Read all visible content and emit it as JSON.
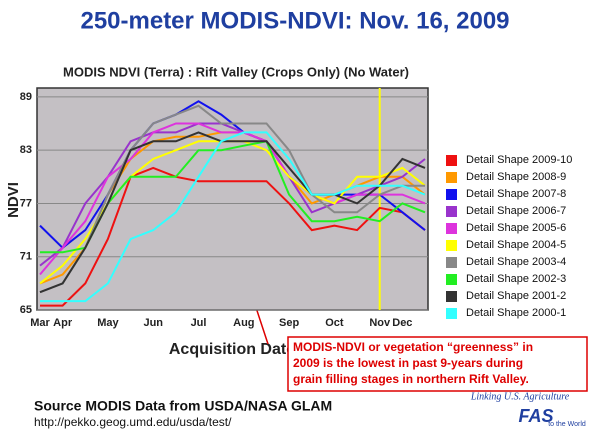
{
  "slide": {
    "title": "250-meter MODIS-NDVI: Nov. 16, 2009",
    "source": "Source MODIS Data from USDA/NASA GLAM",
    "url": "http://pekko.geog.umd.edu/usda/test/",
    "logo_line": "Linking U.S. Agriculture",
    "logo_mark": "FAS",
    "logo_tail": "to the World"
  },
  "chart_data": {
    "type": "line",
    "title": "MODIS NDVI (Terra) : Rift Valley (Crops Only) (No Water)",
    "x_label": "Acquisition Date",
    "y_label": "NDVI",
    "annotation": [
      "MODIS-NDVI or vegetation “greenness” in",
      "2009 is the lowest in past 9-years during",
      "grain filling stages in northern Rift Valley."
    ],
    "categories": [
      "Mar",
      "Apr",
      null,
      "May",
      null,
      "Jun",
      null,
      "Jul",
      null,
      "Aug",
      null,
      "Sep",
      null,
      "Oct",
      null,
      "Nov",
      "Dec",
      null
    ],
    "ylim": [
      65,
      90
    ],
    "yticks": [
      65,
      71,
      77,
      83,
      89
    ],
    "grid": true,
    "series": [
      {
        "name": "Detail Shape 2009-10",
        "color": "#ee1111",
        "values": [
          65.5,
          65.5,
          68,
          73,
          80,
          81,
          80,
          79.5,
          79.5,
          79.5,
          79.5,
          77,
          74,
          74.5,
          74,
          76.5,
          76,
          74
        ]
      },
      {
        "name": "Detail Shape 2008-9",
        "color": "#ff9900",
        "values": [
          68,
          69,
          72,
          78,
          82,
          84,
          84.5,
          84.5,
          85,
          85,
          84,
          80,
          77,
          78,
          79,
          80,
          80,
          78
        ]
      },
      {
        "name": "Detail Shape 2007-8",
        "color": "#1111ee",
        "values": [
          74.5,
          72,
          74,
          78,
          83,
          86,
          87,
          88.5,
          87,
          85,
          84,
          80,
          78,
          78,
          78,
          78,
          76,
          74
        ]
      },
      {
        "name": "Detail Shape 2006-7",
        "color": "#9933cc",
        "values": [
          70,
          72,
          77,
          80,
          84,
          85,
          85,
          86,
          86,
          85,
          84,
          80,
          76,
          77,
          78,
          79,
          80,
          82
        ]
      },
      {
        "name": "Detail Shape 2005-6",
        "color": "#dd33dd",
        "values": [
          69,
          72,
          75,
          80,
          82,
          85,
          86,
          86,
          85,
          85,
          84,
          80,
          78,
          77,
          78,
          78,
          78,
          77
        ]
      },
      {
        "name": "Detail Shape 2004-5",
        "color": "#ffff00",
        "values": [
          68,
          70,
          73,
          77,
          80,
          82,
          83,
          84,
          84,
          84,
          83,
          80,
          78,
          77,
          80,
          80,
          81,
          79
        ]
      },
      {
        "name": "Detail Shape 2003-4",
        "color": "#888888",
        "values": [
          67,
          68,
          72,
          78,
          83,
          86,
          87,
          88,
          86,
          86,
          86,
          83,
          78,
          76,
          76,
          78,
          79,
          79
        ]
      },
      {
        "name": "Detail Shape 2002-3",
        "color": "#22ee22",
        "values": [
          71.5,
          71.5,
          72,
          77,
          80,
          80,
          80,
          83,
          83,
          83.5,
          84,
          78,
          75,
          75,
          75.5,
          75,
          77,
          76
        ]
      },
      {
        "name": "Detail Shape 2001-2",
        "color": "#333333",
        "values": [
          67,
          68,
          72,
          77,
          83,
          84,
          84,
          85,
          84,
          84,
          84,
          81,
          78,
          78,
          77,
          79,
          82,
          81
        ]
      },
      {
        "name": "Detail Shape 2000-1",
        "color": "#33ffff",
        "values": [
          66,
          66,
          66,
          68,
          73,
          74,
          76,
          80,
          84,
          85,
          85,
          82,
          78,
          78,
          79,
          79,
          79,
          78
        ]
      }
    ]
  }
}
